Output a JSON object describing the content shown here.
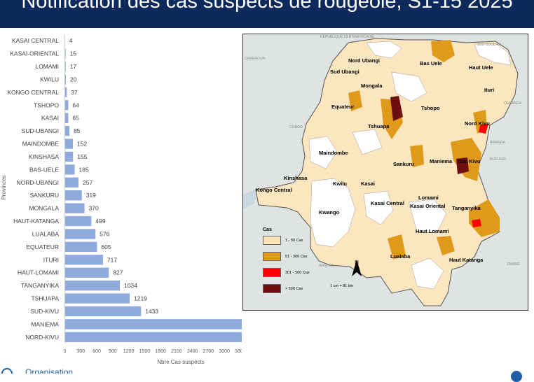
{
  "title": "Notification des cas suspects de rougeole, S1-15 2025",
  "chart_data": {
    "type": "bar",
    "orientation": "horizontal",
    "categories": [
      "KASAI CENTRAL",
      "KASAI-ORIENTAL",
      "LOMAMI",
      "KWILU",
      "KONGO CENTRAL",
      "TSHOPO",
      "KASAI",
      "SUD-UBANGI",
      "MAINDOMBE",
      "KINSHASA",
      "BAS-UELE",
      "NORD-UBANGI",
      "SANKURU",
      "MONGALA",
      "HAUT-KATANGA",
      "LUALABA",
      "EQUATEUR",
      "ITURI",
      "HAUT-LOMAMI",
      "TANGANYIKA",
      "TSHUAPA",
      "SUD-KIVU",
      "MANIEMA",
      "NORD-KIVU"
    ],
    "values": [
      4,
      15,
      17,
      20,
      37,
      64,
      65,
      85,
      152,
      155,
      185,
      257,
      319,
      370,
      499,
      576,
      605,
      717,
      827,
      1034,
      1219,
      1433,
      4161,
      4373
    ],
    "xlabel": "Nbre Cas suspects",
    "ylabel": "Provinces",
    "xlim": [
      0,
      4500
    ],
    "xticks": [
      0,
      300,
      600,
      900,
      1200,
      1500,
      1800,
      2100,
      2400,
      2700,
      3000,
      3300,
      3600,
      3900,
      4200,
      4500
    ],
    "bar_color": "#8faadc",
    "grid": false,
    "data_labels": true
  },
  "map": {
    "provinces": {
      "nord_ubangi": "Nord Ubangi",
      "sud_ubangi": "Sud Ubangi",
      "bas_uele": "Bas Uele",
      "haut_uele": "Haut Uele",
      "mongala": "Mongala",
      "equateur": "Equateur",
      "tshopo": "Tshopo",
      "ituri": "Ituri",
      "tshuapa": "Tshuapa",
      "nord_kivu": "Nord Kivu",
      "maindombe": "Maindombe",
      "sankuru": "Sankuru",
      "maniema": "Maniema",
      "sud_kivu": "Sud Kivu",
      "kinshasa": "Kinshasa",
      "kongo_central": "Kongo Central",
      "kwilu": "Kwilu",
      "kasai": "Kasai",
      "kwango": "Kwango",
      "kasai_central": "Kasai Central",
      "lomami": "Lomami",
      "kasai_oriental": "Kasai Oriental",
      "tanganyika": "Tanganyika",
      "haut_lomami": "Haut Lomami",
      "lualaba": "Lualaba",
      "haut_katanga": "Haut Katanga"
    },
    "neighbors": {
      "rca": "RÉPUBLIQUE CENTRAFRICAINE",
      "sud_soudan": "SUD SOUDAN",
      "cameroun": "CAMEROUN",
      "congo": "CONGO",
      "ouganda": "OUGANDA",
      "rwanda": "RWANDA",
      "burundi": "BURUNDI",
      "angola": "ANGOLA",
      "zambie": "ZAMBIE"
    },
    "legend": {
      "title": "Cas",
      "items": [
        {
          "label": "1 -  50 Cas",
          "color": "#fce4b8"
        },
        {
          "label": "51 - 300 Cas",
          "color": "#e09a1a"
        },
        {
          "label": "301 - 500 Cas",
          "color": "#ff0000"
        },
        {
          "label": "> 500 Cas",
          "color": "#6e0e0e"
        }
      ]
    },
    "north_label": "N",
    "scale_label": "1 cm = 81 km",
    "colors": {
      "land_light": "#fbe6c0",
      "land_medium": "#e09a1a",
      "land_dark": "#6e0e0e",
      "land_red": "#ff0000",
      "no_case": "#ffffff",
      "neighbor": "#dfe3e4"
    }
  },
  "logo_text": "Organisation"
}
